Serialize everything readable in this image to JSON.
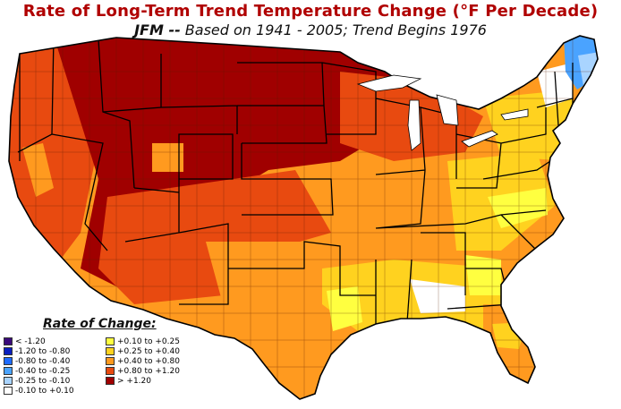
{
  "title": "Rate of Long-Term Trend Temperature Change (°F Per Decade)",
  "subtitle_bold": "JFM --",
  "subtitle_rest": " Based on 1941 - 2005; Trend Begins 1976",
  "legend": {
    "title": "Rate of Change:",
    "items": [
      {
        "label": "< -1.20",
        "color": "#3a0a7a"
      },
      {
        "label": "-1.20 to -0.80",
        "color": "#0a1fbf"
      },
      {
        "label": "-0.80 to -0.40",
        "color": "#1e6bff"
      },
      {
        "label": "-0.40 to -0.25",
        "color": "#4aa3ff"
      },
      {
        "label": "-0.25 to -0.10",
        "color": "#a9d4ff"
      },
      {
        "label": "-0.10 to +0.10",
        "color": "#ffffff"
      },
      {
        "label": "+0.10 to +0.25",
        "color": "#ffff40"
      },
      {
        "label": "+0.25 to +0.40",
        "color": "#ffd21f"
      },
      {
        "label": "+0.40 to +0.80",
        "color": "#ff9a1f"
      },
      {
        "label": "+0.80 to +1.20",
        "color": "#e84a10"
      },
      {
        "label": "> +1.20",
        "color": "#a00000"
      }
    ]
  }
}
